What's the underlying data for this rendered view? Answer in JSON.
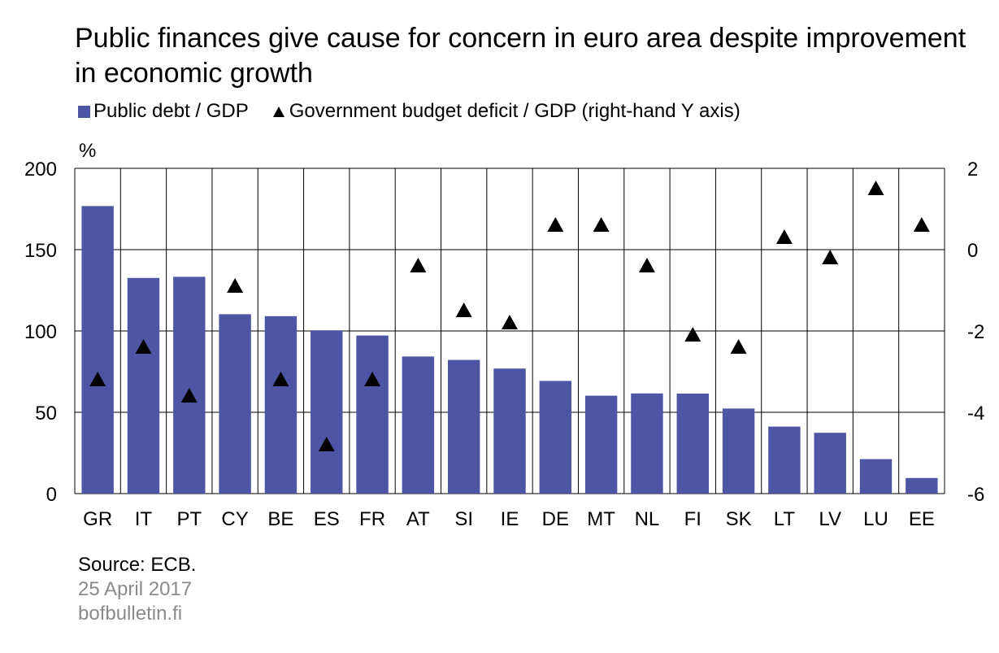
{
  "title": "Public finances give cause for concern in euro area despite improvement in economic growth",
  "legend": {
    "debt": "Public debt / GDP",
    "deficit": "Government budget deficit / GDP (right-hand Y axis)"
  },
  "unit_label": "%",
  "footer": {
    "source": "Source: ECB.",
    "date": "25 April 2017",
    "site": "bofbulletin.fi"
  },
  "colors": {
    "bar": "#4d55a4",
    "marker": "#000000",
    "grid": "#000000"
  },
  "chart_data": {
    "type": "bar",
    "categories": [
      "GR",
      "IT",
      "PT",
      "CY",
      "BE",
      "ES",
      "FR",
      "AT",
      "SI",
      "IE",
      "DE",
      "MT",
      "NL",
      "FI",
      "SK",
      "LT",
      "LV",
      "LU",
      "EE"
    ],
    "series": [
      {
        "name": "Public debt / GDP",
        "type": "bar",
        "axis": "left",
        "values": [
          176.8,
          132.6,
          133.3,
          110.3,
          109.1,
          100.4,
          97.2,
          84.3,
          82.2,
          76.9,
          69.3,
          60.2,
          61.6,
          61.5,
          52.3,
          41.2,
          37.4,
          21.2,
          9.6
        ]
      },
      {
        "name": "Government budget deficit / GDP (right-hand Y axis)",
        "type": "scatter",
        "marker": "triangle",
        "axis": "right",
        "values": [
          -3.2,
          -2.4,
          -3.6,
          -0.9,
          -3.2,
          -4.8,
          -3.2,
          -0.4,
          -1.5,
          -1.8,
          0.6,
          0.6,
          -0.4,
          -2.1,
          -2.4,
          0.3,
          -0.2,
          1.5,
          0.6
        ]
      }
    ],
    "ylim_left": [
      0,
      200
    ],
    "yticks_left": [
      "0",
      "50",
      "100",
      "150",
      "200"
    ],
    "ylim_right": [
      -6,
      2
    ],
    "yticks_right": [
      "-6",
      "-4",
      "-2",
      "0",
      "2"
    ],
    "grid": true,
    "legend_position": "top-left"
  }
}
